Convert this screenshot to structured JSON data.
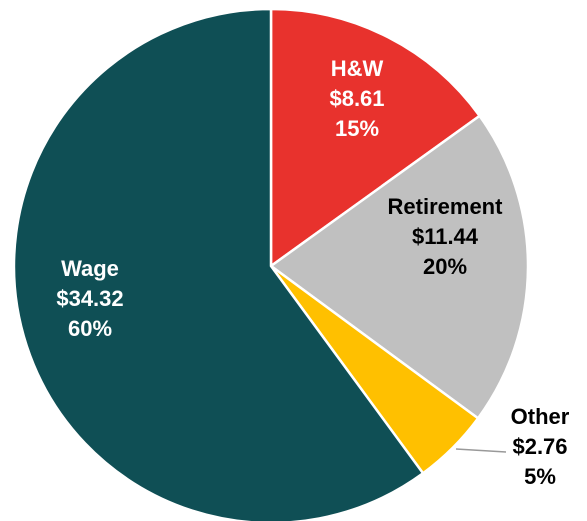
{
  "chart_data": {
    "type": "pie",
    "categories": [
      "H&W",
      "Retirement",
      "Other",
      "Wage"
    ],
    "values": [
      8.61,
      11.44,
      2.76,
      34.32
    ],
    "value_labels": [
      "$8.61",
      "$11.44",
      "$2.76",
      "$34.32"
    ],
    "percents": [
      15,
      20,
      5,
      60
    ],
    "percent_labels": [
      "15%",
      "20%",
      "5%",
      "60%"
    ],
    "colors": [
      "#e8322d",
      "#c0c0c0",
      "#ffc000",
      "#0f4f55"
    ],
    "label_colors": [
      "#ffffff",
      "#000000",
      "#000000",
      "#ffffff"
    ]
  }
}
